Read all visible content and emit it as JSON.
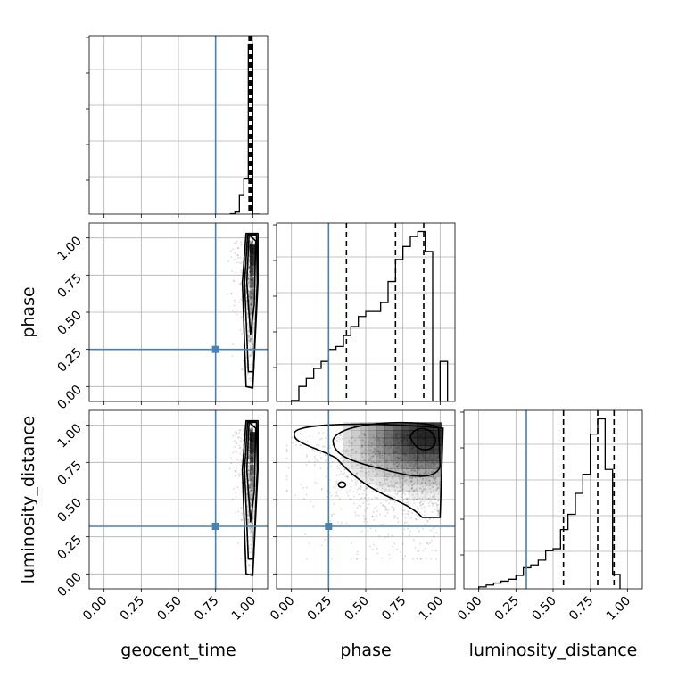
{
  "chart_data": {
    "type": "corner",
    "parameters": [
      "geocent_time",
      "phase",
      "luminosity_distance"
    ],
    "axis_range": [
      -0.1,
      1.1
    ],
    "tick_labels": [
      "0.00",
      "0.25",
      "0.50",
      "0.75",
      "1.00"
    ],
    "grid": true,
    "colors": {
      "truth": "#4682b4",
      "hist": "#000000",
      "density": "#000000"
    },
    "truths": {
      "geocent_time": 0.75,
      "phase": 0.25,
      "luminosity_distance": 0.32
    },
    "quantiles": {
      "geocent_time": [
        0.975,
        0.985,
        0.992
      ],
      "phase": [
        0.37,
        0.7,
        0.89
      ],
      "luminosity_distance": [
        0.57,
        0.8,
        0.91
      ]
    },
    "histograms": {
      "geocent_time": {
        "bin_edges": [
          0.85,
          0.88,
          0.91,
          0.94,
          0.97,
          1.0,
          1.05
        ],
        "counts": [
          1,
          5,
          45,
          85,
          410,
          0
        ]
      },
      "phase": {
        "bin_edges": [
          -0.05,
          0.0,
          0.05,
          0.1,
          0.15,
          0.2,
          0.25,
          0.3,
          0.35,
          0.4,
          0.45,
          0.5,
          0.55,
          0.6,
          0.65,
          0.7,
          0.75,
          0.8,
          0.85,
          0.9,
          0.95,
          1.0,
          1.05
        ],
        "counts": [
          0,
          1,
          15,
          23,
          33,
          40,
          52,
          55,
          66,
          75,
          85,
          90,
          90,
          99,
          120,
          142,
          155,
          165,
          170,
          150,
          0,
          40
        ]
      },
      "luminosity_distance": {
        "bin_edges": [
          0.0,
          0.05,
          0.1,
          0.15,
          0.2,
          0.25,
          0.3,
          0.35,
          0.4,
          0.45,
          0.5,
          0.55,
          0.6,
          0.65,
          0.7,
          0.75,
          0.8,
          0.85,
          0.9,
          0.95
        ],
        "counts": [
          2,
          4,
          6,
          8,
          10,
          14,
          22,
          25,
          30,
          40,
          42,
          62,
          78,
          100,
          120,
          162,
          178,
          125,
          15
        ]
      }
    },
    "density": {
      "phase_vs_geocent_time": {
        "peak": [
          0.995,
          0.88
        ]
      },
      "luminosity_distance_vs_geocent_time": {
        "peak": [
          0.995,
          0.9
        ]
      },
      "luminosity_distance_vs_phase": {
        "peak": [
          0.88,
          0.9
        ]
      }
    }
  }
}
